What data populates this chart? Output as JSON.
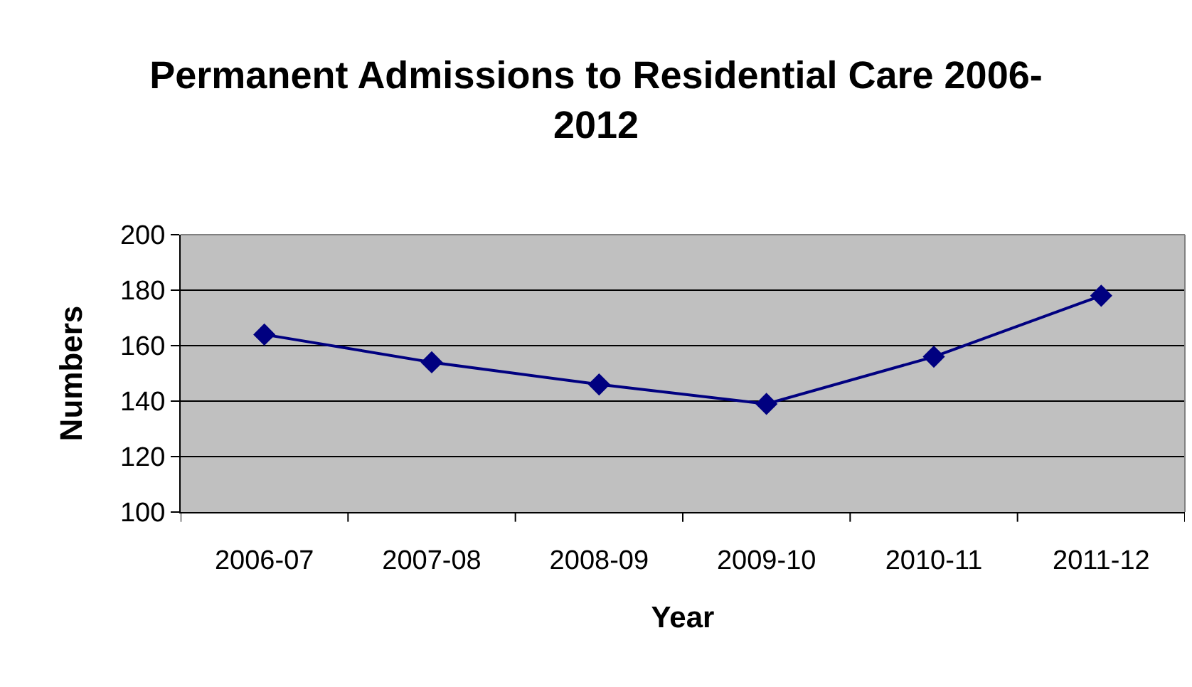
{
  "chart_data": {
    "type": "line",
    "title": "Permanent Admissions to Residential Care 2006-2012",
    "xlabel": "Year",
    "ylabel": "Numbers",
    "categories": [
      "2006-07",
      "2007-08",
      "2008-09",
      "2009-10",
      "2010-11",
      "2011-12"
    ],
    "series": [
      {
        "color": "#000080",
        "values": [
          164,
          154,
          146,
          139,
          156,
          178
        ]
      }
    ],
    "ylim": [
      100,
      200
    ],
    "yticks": [
      100,
      120,
      140,
      160,
      180,
      200
    ],
    "grid": "y",
    "marker": "diamond",
    "line_style": "solid"
  }
}
